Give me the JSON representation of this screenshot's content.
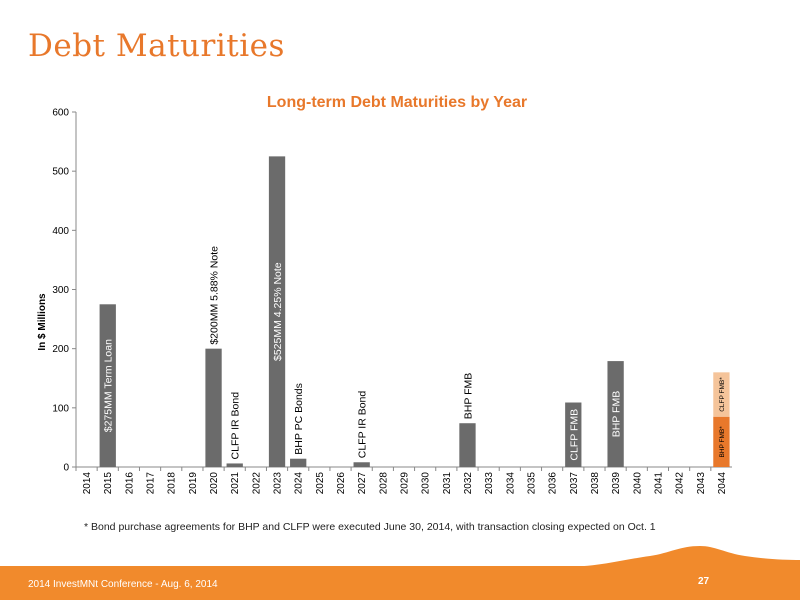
{
  "slide": {
    "title": "Debt Maturities",
    "footnote": "*  Bond purchase agreements for BHP and CLFP were executed June 30, 2014, with transaction closing expected  on Oct. 1",
    "footer_text": "2014 InvestMNt Conference - Aug. 6, 2014",
    "page_number": "27"
  },
  "chart_data": {
    "type": "bar",
    "title": "Long-term Debt Maturities by Year",
    "ylabel": "In $ Millions",
    "xlabel": "",
    "ylim": [
      0,
      600
    ],
    "yticks": [
      0,
      100,
      200,
      300,
      400,
      500,
      600
    ],
    "grid": false,
    "categories": [
      "2014",
      "2015",
      "2016",
      "2017",
      "2018",
      "2019",
      "2020",
      "2021",
      "2022",
      "2023",
      "2024",
      "2025",
      "2026",
      "2027",
      "2028",
      "2029",
      "2030",
      "2031",
      "2032",
      "2033",
      "2034",
      "2035",
      "2036",
      "2037",
      "2038",
      "2039",
      "2040",
      "2041",
      "2042",
      "2043",
      "2044"
    ],
    "values": [
      0,
      275,
      0,
      0,
      0,
      0,
      200,
      6,
      0,
      525,
      14,
      0,
      0,
      8,
      0,
      0,
      0,
      0,
      74,
      0,
      0,
      0,
      0,
      109,
      0,
      179,
      0,
      0,
      0,
      0,
      0
    ],
    "bar_color": "#6b6b6b",
    "annotations": [
      {
        "category": "2015",
        "text": "$275MM Term Loan",
        "position": "inside"
      },
      {
        "category": "2020",
        "text": "$200MM 5.88% Note",
        "position": "above"
      },
      {
        "category": "2021",
        "text": "CLFP IR Bond",
        "position": "above"
      },
      {
        "category": "2023",
        "text": "$525MM 4.25% Note",
        "position": "inside"
      },
      {
        "category": "2024",
        "text": "BHP PC Bonds",
        "position": "above"
      },
      {
        "category": "2027",
        "text": "CLFP IR Bond",
        "position": "above"
      },
      {
        "category": "2032",
        "text": "BHP FMB",
        "position": "above"
      },
      {
        "category": "2037",
        "text": "CLFP FMB",
        "position": "inside"
      },
      {
        "category": "2039",
        "text": "BHP FMB",
        "position": "inside"
      }
    ],
    "stacked_bar": {
      "category": "2044",
      "segments": [
        {
          "label": "BHP FMB*",
          "value": 85,
          "color": "#e8782b"
        },
        {
          "label": "CLFP FMB*",
          "value": 75,
          "color": "#f5c49a"
        }
      ]
    },
    "colors": {
      "accent": "#e8782b",
      "axis": "#888888",
      "text": "#000000"
    }
  }
}
